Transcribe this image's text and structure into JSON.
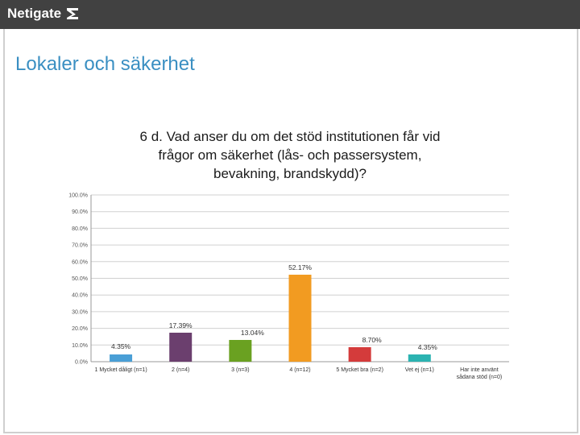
{
  "app": {
    "logo_text": "Netigate"
  },
  "page": {
    "title": "Lokaler och säkerhet"
  },
  "chart_data": {
    "type": "bar",
    "title_lines": [
      "6 d. Vad anser du om det stöd institutionen får vid",
      "frågor om säkerhet (lås- och passersystem,",
      "bevakning, brandskydd)?"
    ],
    "categories": [
      [
        "1 Mycket dåligt (n=1)"
      ],
      [
        "2 (n=4)"
      ],
      [
        "3 (n=3)"
      ],
      [
        "4 (n=12)"
      ],
      [
        "5 Mycket bra (n=2)"
      ],
      [
        "Vet ej (n=1)"
      ],
      [
        "Har inte använt",
        "sådana stöd (n=0)"
      ]
    ],
    "values": [
      4.35,
      17.39,
      13.04,
      52.17,
      8.7,
      4.35,
      0
    ],
    "data_labels": [
      "4.35%",
      "17.39%",
      "13.04%",
      "52.17%",
      "8.70%",
      "4.35%",
      ""
    ],
    "colors": [
      "#4a9fd6",
      "#6b3f6e",
      "#6aa121",
      "#f29b21",
      "#d43b3b",
      "#2bb3b1",
      "#999999"
    ],
    "ylim": [
      0,
      100
    ],
    "yticks": [
      0,
      10,
      20,
      30,
      40,
      50,
      60,
      70,
      80,
      90,
      100
    ],
    "ytick_labels": [
      "0.0%",
      "10.0%",
      "20.0%",
      "30.0%",
      "40.0%",
      "50.0%",
      "60.0%",
      "70.0%",
      "80.0%",
      "90.0%",
      "100.0%"
    ],
    "grid": true,
    "xlabel": "",
    "ylabel": ""
  }
}
